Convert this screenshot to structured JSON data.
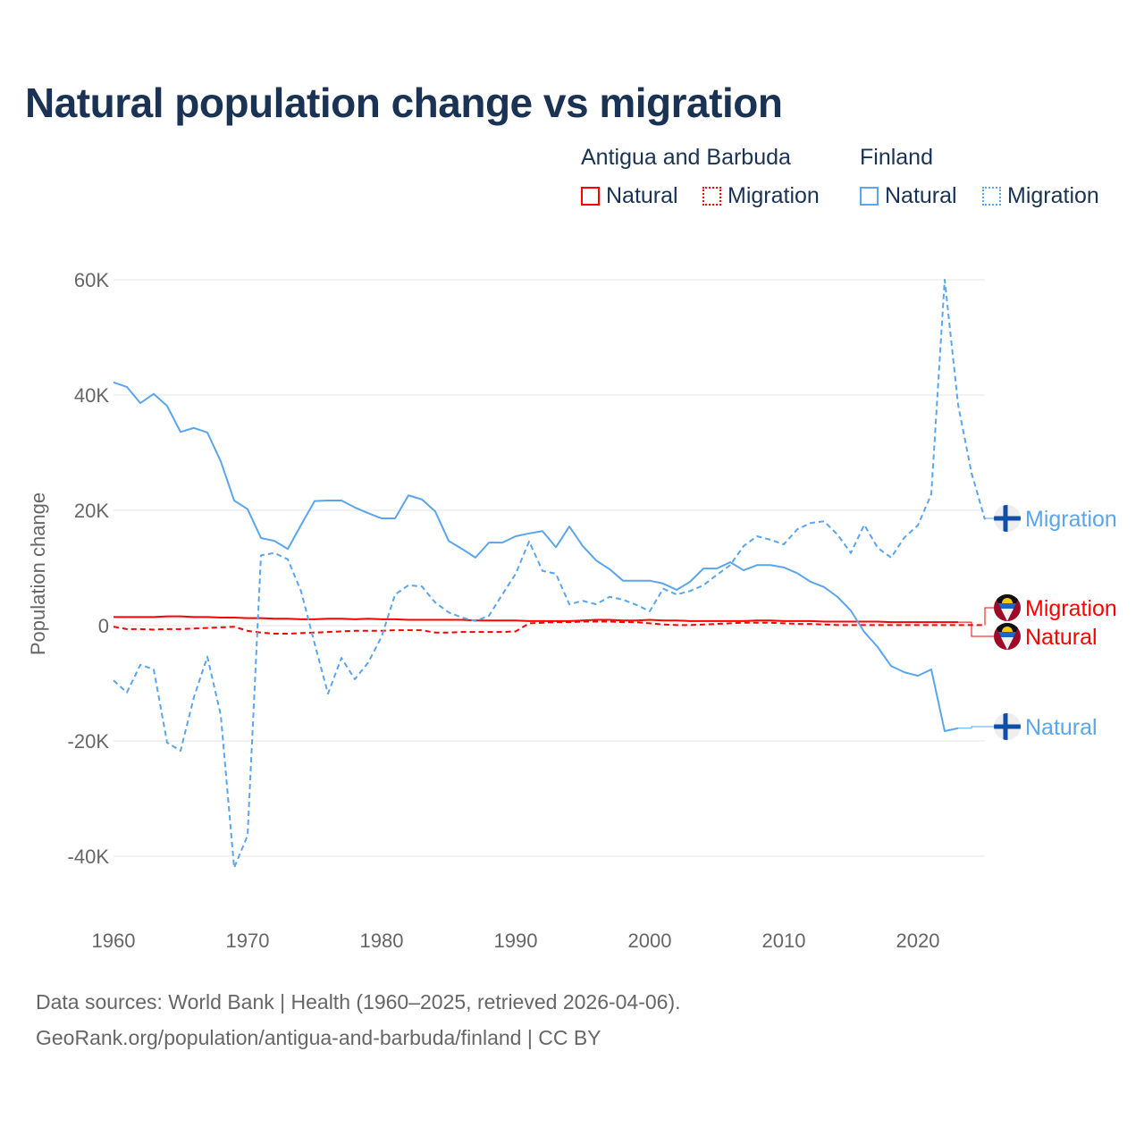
{
  "title": "Natural population change vs migration",
  "legend": {
    "groups": [
      {
        "name": "Antigua and Barbuda",
        "color": "#ff0000",
        "items": [
          "Natural",
          "Migration"
        ]
      },
      {
        "name": "Finland",
        "color": "#5aa5ec",
        "items": [
          "Natural",
          "Migration"
        ]
      }
    ]
  },
  "footer": {
    "line1": "Data sources: World Bank | Health (1960–2025, retrieved 2026-04-06).",
    "line2": "GeoRank.org/population/antigua-and-barbuda/finland | CC BY"
  },
  "chart_data": {
    "type": "line",
    "title": "Natural population change vs migration",
    "ylabel": "Population change",
    "xlabel": "",
    "value_unit": "thousands",
    "ylim": [
      -50,
      60
    ],
    "xlim": [
      1960,
      2025
    ],
    "yticks": [
      -40,
      -20,
      0,
      20,
      40,
      60
    ],
    "ytick_labels": [
      "-40K",
      "-20K",
      "0",
      "20K",
      "40K",
      "60K"
    ],
    "xticks": [
      1960,
      1970,
      1980,
      1990,
      2000,
      2010,
      2020
    ],
    "xtick_labels": [
      "1960",
      "1970",
      "1980",
      "1990",
      "2000",
      "2010",
      "2020"
    ],
    "grid": true,
    "legend_position": "top-right",
    "series": [
      {
        "name": "Antigua and Barbuda Natural",
        "label": "Natural",
        "color": "#ff0000",
        "dash": false,
        "start": 1960,
        "values": [
          1.5,
          1.5,
          1.5,
          1.5,
          1.6,
          1.6,
          1.5,
          1.5,
          1.4,
          1.4,
          1.3,
          1.3,
          1.2,
          1.2,
          1.1,
          1.1,
          1.2,
          1.2,
          1.1,
          1.2,
          1.1,
          1.1,
          1.0,
          1.0,
          1.0,
          1.0,
          1.0,
          0.9,
          0.9,
          0.9,
          0.9,
          0.8,
          0.8,
          0.8,
          0.8,
          0.9,
          1.0,
          1.0,
          0.9,
          0.9,
          1.0,
          0.9,
          0.9,
          0.8,
          0.8,
          0.8,
          0.8,
          0.8,
          0.9,
          0.9,
          0.8,
          0.8,
          0.8,
          0.7,
          0.7,
          0.7,
          0.7,
          0.7,
          0.6,
          0.6,
          0.6,
          0.6,
          0.6,
          0.6
        ]
      },
      {
        "name": "Antigua and Barbuda Migration",
        "label": "Migration",
        "color": "#ff0000",
        "dash": true,
        "start": 1960,
        "values": [
          -0.2,
          -0.6,
          -0.6,
          -0.7,
          -0.6,
          -0.6,
          -0.5,
          -0.4,
          -0.3,
          -0.2,
          -0.9,
          -1.2,
          -1.4,
          -1.4,
          -1.3,
          -1.2,
          -1.1,
          -1.0,
          -0.9,
          -0.9,
          -0.9,
          -0.8,
          -0.8,
          -0.8,
          -1.2,
          -1.2,
          -1.1,
          -1.1,
          -1.1,
          -1.1,
          -1.0,
          0.4,
          0.5,
          0.6,
          0.6,
          0.7,
          0.7,
          0.7,
          0.6,
          0.6,
          0.4,
          0.2,
          0.1,
          0.1,
          0.2,
          0.3,
          0.4,
          0.5,
          0.5,
          0.5,
          0.4,
          0.3,
          0.3,
          0.2,
          0.1,
          0.1,
          0.1,
          0.1,
          0.1,
          0.1,
          0.1,
          0.1,
          0.1,
          0.1,
          0.1,
          0.1
        ]
      },
      {
        "name": "Finland Natural",
        "label": "Natural",
        "color": "#5aa5ec",
        "dash": false,
        "start": 1960,
        "values": [
          42.2,
          41.4,
          38.6,
          40.2,
          38.1,
          33.6,
          34.3,
          33.5,
          28.5,
          21.7,
          20.2,
          15.2,
          14.7,
          13.3,
          17.5,
          21.6,
          21.7,
          21.7,
          20.5,
          19.5,
          18.6,
          18.6,
          22.6,
          21.9,
          19.8,
          14.7,
          13.3,
          11.8,
          14.4,
          14.4,
          15.5,
          16.0,
          16.4,
          13.6,
          17.2,
          13.8,
          11.3,
          9.8,
          7.8,
          7.8,
          7.8,
          7.3,
          6.2,
          7.6,
          9.9,
          9.9,
          11.0,
          9.6,
          10.5,
          10.5,
          10.1,
          9.1,
          7.6,
          6.7,
          5.0,
          2.6,
          -1.1,
          -3.7,
          -7.0,
          -8.1,
          -8.7,
          -7.6,
          -18.3,
          -17.8
        ]
      },
      {
        "name": "Finland Migration",
        "label": "Migration",
        "color": "#5aa5ec",
        "dash": true,
        "start": 1960,
        "values": [
          -9.5,
          -11.6,
          -6.8,
          -7.6,
          -20.3,
          -21.7,
          -12.4,
          -5.4,
          -15.5,
          -42.0,
          -36.4,
          12.2,
          12.6,
          11.5,
          5.9,
          -3.1,
          -11.8,
          -5.6,
          -9.3,
          -6.4,
          -1.9,
          5.4,
          7.0,
          6.8,
          4.0,
          2.3,
          1.4,
          0.8,
          1.7,
          5.4,
          9.0,
          14.6,
          9.5,
          9.0,
          3.7,
          4.3,
          3.7,
          5.0,
          4.5,
          3.6,
          2.5,
          6.4,
          5.4,
          6.0,
          7.0,
          8.8,
          10.5,
          13.8,
          15.5,
          14.9,
          14.1,
          16.7,
          17.8,
          18.1,
          15.8,
          12.6,
          17.5,
          13.5,
          11.8,
          15.3,
          17.4,
          22.8,
          60.0,
          38.3,
          26.5,
          18.4
        ]
      }
    ]
  }
}
